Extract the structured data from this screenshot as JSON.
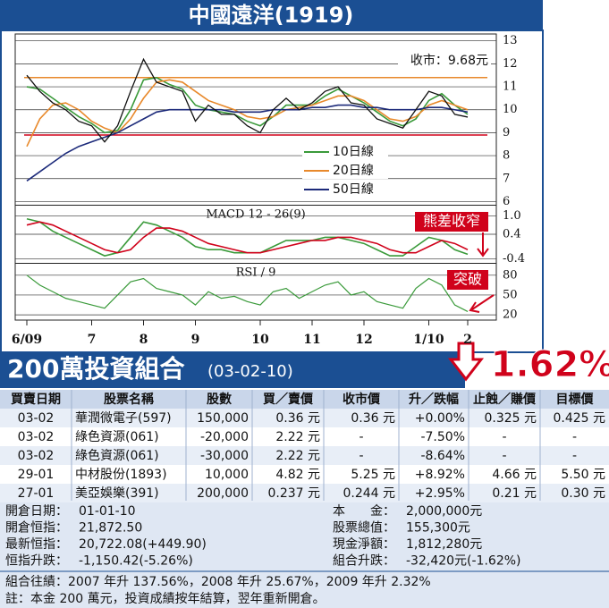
{
  "header": {
    "title": "中國遠洋(1919)"
  },
  "chart_data": [
    {
      "type": "line",
      "categories": [
        "6/09",
        null,
        null,
        null,
        null,
        "7",
        null,
        null,
        null,
        "8",
        null,
        null,
        null,
        "9",
        null,
        null,
        null,
        null,
        "10",
        null,
        null,
        null,
        "11",
        null,
        null,
        null,
        "12",
        null,
        null,
        null,
        null,
        "1/10",
        null,
        null,
        "2"
      ],
      "values": [
        11.5,
        10.8,
        10.3,
        10.0,
        9.5,
        9.3,
        8.6,
        9.3,
        10.8,
        12.2,
        11.2,
        11.0,
        10.8,
        9.5,
        10.2,
        9.8,
        9.8,
        9.3,
        9.0,
        10.0,
        10.5,
        10.0,
        10.3,
        10.8,
        11.0,
        10.3,
        10.2,
        9.6,
        9.4,
        9.2,
        10.0,
        10.8,
        10.6,
        9.8,
        9.68
      ],
      "color": "#111111",
      "series": [
        {
          "name": "10日線",
          "color": "#3a9a3a",
          "values": [
            11.0,
            10.9,
            10.5,
            10.1,
            9.7,
            9.4,
            9.0,
            9.1,
            10.0,
            11.3,
            11.4,
            11.1,
            10.9,
            10.2,
            10.0,
            9.9,
            9.8,
            9.5,
            9.3,
            9.7,
            10.2,
            10.2,
            10.2,
            10.6,
            10.9,
            10.6,
            10.3,
            9.9,
            9.5,
            9.3,
            9.6,
            10.4,
            10.7,
            10.2,
            9.8
          ]
        },
        {
          "name": "20日線",
          "color": "#e8892b",
          "values": [
            8.4,
            9.6,
            10.2,
            10.3,
            10.0,
            9.5,
            9.2,
            9.0,
            9.6,
            10.5,
            11.2,
            11.3,
            11.2,
            10.8,
            10.4,
            10.2,
            10.0,
            9.7,
            9.6,
            9.7,
            10.0,
            10.1,
            10.2,
            10.4,
            10.6,
            10.6,
            10.4,
            10.0,
            9.6,
            9.5,
            9.7,
            10.2,
            10.4,
            10.2,
            10.0
          ]
        },
        {
          "name": "50日線",
          "color": "#1c2a7a",
          "values": [
            6.9,
            7.3,
            7.7,
            8.1,
            8.4,
            8.6,
            8.8,
            9.0,
            9.3,
            9.6,
            9.9,
            10.0,
            10.0,
            10.0,
            10.0,
            10.0,
            9.9,
            9.9,
            9.9,
            10.0,
            10.0,
            10.0,
            10.1,
            10.1,
            10.2,
            10.2,
            10.1,
            10.1,
            10.0,
            10.0,
            10.0,
            10.1,
            10.1,
            10.0,
            9.9
          ]
        }
      ],
      "ylim": [
        5.9,
        13.3
      ],
      "yticks": [
        6,
        7,
        8,
        9,
        10,
        11,
        12,
        13
      ],
      "grid": true,
      "legend": "lower center",
      "reference_lines": [
        {
          "value": 11.4,
          "color": "#e8892b"
        },
        {
          "value": 8.9,
          "color": "#d0021b"
        }
      ],
      "annotation": "收市：9.68元"
    },
    {
      "type": "line",
      "title": "MACD 12 - 26(9)",
      "series": [
        {
          "color": "#3a9a3a",
          "values": [
            0.9,
            0.8,
            0.5,
            0.3,
            0.1,
            -0.1,
            -0.3,
            -0.2,
            0.3,
            0.8,
            0.7,
            0.5,
            0.3,
            0.0,
            -0.1,
            -0.1,
            -0.2,
            -0.2,
            -0.2,
            0.0,
            0.2,
            0.2,
            0.2,
            0.3,
            0.3,
            0.2,
            0.1,
            -0.1,
            -0.3,
            -0.3,
            0.0,
            0.3,
            0.2,
            -0.1,
            -0.25
          ]
        },
        {
          "color": "#d0021b",
          "values": [
            0.7,
            0.8,
            0.7,
            0.5,
            0.3,
            0.1,
            -0.1,
            -0.2,
            -0.1,
            0.3,
            0.6,
            0.6,
            0.5,
            0.3,
            0.1,
            0.0,
            -0.1,
            -0.2,
            -0.2,
            -0.1,
            0.0,
            0.1,
            0.2,
            0.2,
            0.3,
            0.3,
            0.2,
            0.1,
            -0.1,
            -0.2,
            -0.2,
            0.0,
            0.2,
            0.1,
            -0.1
          ]
        }
      ],
      "ylim": [
        -0.5,
        1.3
      ],
      "yticks": [
        {
          "value": 1,
          "label": "1.0"
        },
        0.4,
        -0.4
      ],
      "grid": true,
      "annotation": "熊差收窄"
    },
    {
      "type": "line",
      "title": "RSI / 9",
      "values": [
        80,
        65,
        55,
        45,
        40,
        35,
        30,
        50,
        70,
        75,
        60,
        55,
        50,
        35,
        55,
        45,
        48,
        40,
        35,
        55,
        60,
        45,
        55,
        65,
        70,
        50,
        55,
        40,
        35,
        30,
        60,
        75,
        65,
        35,
        25
      ],
      "color": "#3a9a3a",
      "ylim": [
        12,
        96
      ],
      "yticks": [
        80,
        50,
        20
      ],
      "grid": true,
      "annotation": "突破"
    }
  ],
  "portfolio": {
    "title": "200萬投資組合",
    "date": "(03-02-10)",
    "change": "1.62%",
    "table": {
      "header": [
        "買賣日期",
        "股票名稱",
        "股數",
        "買／賣價",
        "收市價",
        "升／跌幅",
        "止蝕／賺價",
        "目標價"
      ],
      "rows": [
        [
          "03-02",
          "華潤微電子(597)",
          "150,000",
          "0.36 元",
          "0.36 元",
          "+0.00%",
          "0.325 元",
          "0.425 元"
        ],
        [
          "03-02",
          "綠色資源(061)",
          "-20,000",
          "2.22 元",
          "-",
          "-7.50%",
          "-",
          "-"
        ],
        [
          "03-02",
          "綠色資源(061)",
          "-30,000",
          "2.22 元",
          "-",
          "-8.64%",
          "-",
          "-"
        ],
        [
          "29-01",
          "中材股份(1893)",
          "10,000",
          "4.82 元",
          "5.25 元",
          "+8.92%",
          "4.66 元",
          "5.50 元"
        ],
        [
          "27-01",
          "美亞娛樂(391)",
          "200,000",
          "0.237 元",
          "0.244 元",
          "+2.95%",
          "0.21 元",
          "0.30 元"
        ]
      ]
    },
    "summary": {
      "left": [
        [
          "開倉日期：",
          "01-01-10"
        ],
        [
          "開倉恒指：",
          "21,872.50"
        ],
        [
          "最新恒指：",
          "20,722.08(+449.90)"
        ],
        [
          "恒指升跌：",
          "-1,150.42(-5.26%)"
        ]
      ],
      "right": [
        [
          "本　　金：",
          "2,000,000元"
        ],
        [
          "股票總值：",
          "155,300元"
        ],
        [
          "現金淨額：",
          "1,812,280元"
        ],
        [
          "組合升跌：",
          "-32,420元(-1.62%)"
        ]
      ],
      "notes": [
        "組合往績：2007 年升 137.56%，2008 年升 25.67%，2009 年升 2.32%",
        "註：本金 200 萬元，投資成績按年結算，翌年重新開倉。"
      ]
    }
  }
}
